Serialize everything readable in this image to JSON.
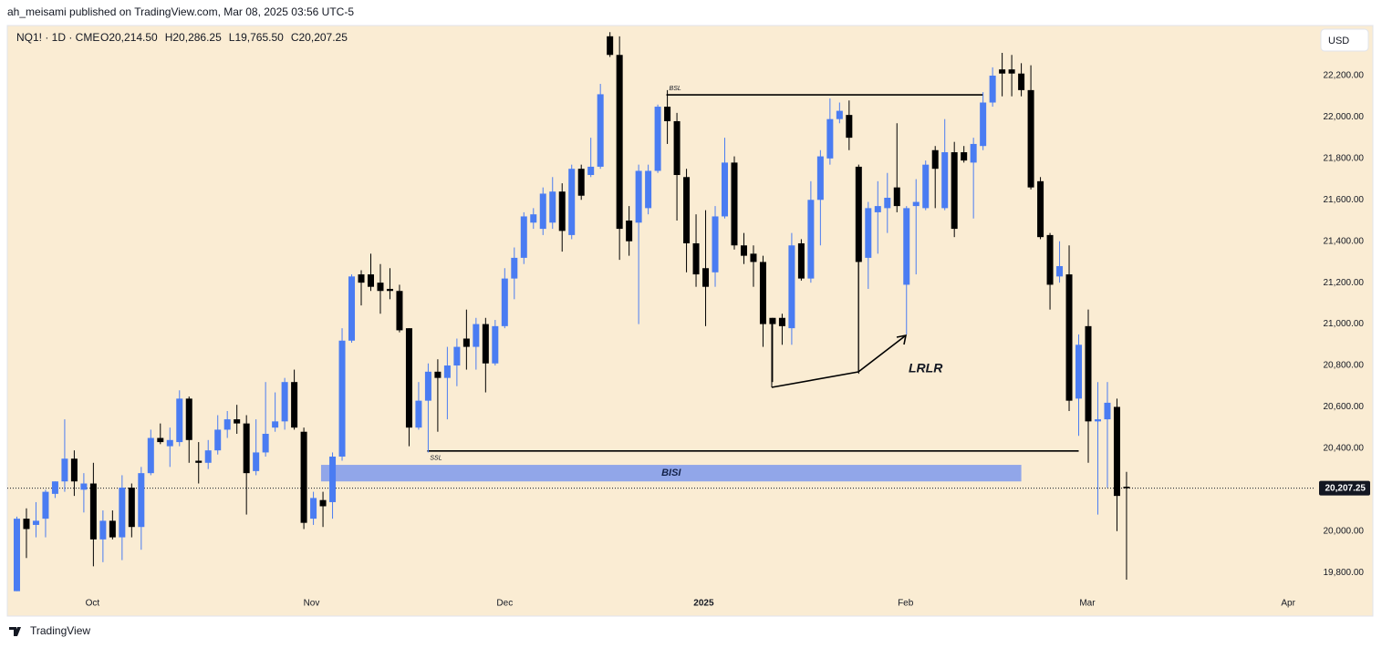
{
  "chart_data": {
    "type": "candlestick",
    "attribution": "ah_meisami published on TradingView.com, Mar 08, 2025 03:56 UTC-5",
    "symbol": "NQ1! · 1D · CME",
    "ohlc_labels": [
      "O20,214.50",
      "H20,286.25",
      "L19,765.50",
      "C20,207.25"
    ],
    "currency": "USD",
    "brand": "TradingView",
    "up_color": "#4a7cf2",
    "down_color": "#000000",
    "grid": false,
    "open": [
      19710,
      20060,
      20030,
      20060,
      20180,
      20240,
      20350,
      20200,
      20230,
      19960,
      20050,
      19970,
      20210,
      20020,
      20280,
      20450,
      20410,
      20430,
      20640,
      20340,
      20330,
      20390,
      20490,
      20540,
      20520,
      20290,
      20380,
      20500,
      20530,
      20720,
      20480,
      20060,
      20150,
      20140,
      20360,
      20920,
      21240,
      21240,
      21200,
      21170,
      21160,
      20980,
      20500,
      20630,
      20770,
      20740,
      20800,
      20930,
      20890,
      21000,
      20810,
      20990,
      21220,
      21320,
      21490,
      21460,
      21490,
      21640,
      21430,
      21750,
      21720,
      21760,
      22390,
      22300,
      21500,
      21490,
      21560,
      21740,
      22050,
      21980,
      21710,
      21390,
      21270,
      21250,
      21520,
      21780,
      21380,
      21340,
      21300,
      21030,
      21030,
      20980,
      21390,
      21220,
      21600,
      21800,
      21990,
      22010,
      21760,
      21320,
      21540,
      21560,
      21660,
      21190,
      21570,
      21560,
      21840,
      21560,
      21830,
      21830,
      21780,
      21860,
      22070,
      22230,
      22230,
      22210,
      22130,
      21690,
      21430,
      21230,
      21240,
      20640,
      20990,
      20530,
      20540,
      20600,
      20214.5
    ],
    "high": [
      20070,
      20110,
      20140,
      20200,
      20240,
      20540,
      20390,
      20280,
      20330,
      20100,
      20100,
      20270,
      20230,
      20310,
      20490,
      20520,
      20500,
      20680,
      20650,
      20430,
      20440,
      20560,
      20580,
      20610,
      20560,
      20540,
      20720,
      20670,
      20740,
      20780,
      20500,
      20190,
      20190,
      20380,
      20980,
      21240,
      21260,
      21340,
      21290,
      21270,
      21190,
      20980,
      20720,
      20810,
      20830,
      20890,
      20930,
      21070,
      21030,
      21030,
      21020,
      21270,
      21370,
      21540,
      21560,
      21660,
      21710,
      21680,
      21770,
      21770,
      21900,
      22160,
      22410,
      22390,
      21570,
      21770,
      21770,
      22060,
      22130,
      22020,
      21750,
      21530,
      21550,
      21570,
      21900,
      21810,
      21440,
      21380,
      21330,
      21030,
      21050,
      21440,
      21410,
      21690,
      21840,
      22090,
      22070,
      22080,
      21770,
      21590,
      21690,
      21730,
      21970,
      21570,
      21700,
      21790,
      21860,
      21990,
      21880,
      21860,
      21900,
      22120,
      22240,
      22310,
      22300,
      22260,
      22250,
      21710,
      21440,
      21400,
      21380,
      20950,
      21070,
      20720,
      20720,
      20640,
      20286.25
    ],
    "low": [
      19710,
      19870,
      19970,
      19970,
      20160,
      20190,
      20170,
      20090,
      19830,
      19850,
      19960,
      19860,
      19970,
      19910,
      20270,
      20420,
      20310,
      20410,
      20330,
      20230,
      20300,
      20370,
      20450,
      20470,
      20080,
      20270,
      20360,
      20480,
      20490,
      20490,
      20010,
      20030,
      20020,
      20060,
      20340,
      20910,
      21090,
      21160,
      21050,
      21120,
      20960,
      20410,
      20490,
      20380,
      20480,
      20540,
      20700,
      20780,
      20780,
      20670,
      20800,
      20980,
      21120,
      21290,
      21460,
      21430,
      21460,
      21350,
      21410,
      21600,
      21710,
      21750,
      22290,
      21310,
      21330,
      21000,
      21530,
      21730,
      21870,
      21500,
      21250,
      21180,
      20990,
      21180,
      21510,
      21360,
      21290,
      21180,
      20890,
      20720,
      20900,
      20900,
      21210,
      21200,
      21380,
      21770,
      21970,
      21840,
      20760,
      21170,
      21340,
      21440,
      21540,
      20950,
      21240,
      21550,
      21560,
      21550,
      21420,
      21780,
      21510,
      21840,
      22050,
      22100,
      22100,
      22100,
      21650,
      21410,
      21070,
      21200,
      20580,
      20460,
      20330,
      20080,
      20210,
      20000,
      19765.5
    ],
    "close": [
      20060,
      20010,
      20050,
      20190,
      20240,
      20350,
      20240,
      20230,
      19960,
      20050,
      19970,
      20210,
      20020,
      20280,
      20450,
      20430,
      20440,
      20640,
      20440,
      20330,
      20390,
      20490,
      20540,
      20520,
      20280,
      20380,
      20470,
      20530,
      20720,
      20500,
      20040,
      20160,
      20120,
      20360,
      20920,
      21230,
      21200,
      21180,
      21160,
      21160,
      20970,
      20500,
      20630,
      20770,
      20740,
      20800,
      20890,
      20890,
      21000,
      20810,
      20990,
      21220,
      21320,
      21520,
      21530,
      21630,
      21640,
      21450,
      21750,
      21620,
      21760,
      22110,
      22300,
      21460,
      21400,
      21740,
      21740,
      22050,
      21980,
      21720,
      21390,
      21240,
      21180,
      21520,
      21780,
      21380,
      21330,
      21300,
      21000,
      21000,
      20990,
      21380,
      21220,
      21600,
      21810,
      21990,
      22030,
      21900,
      21300,
      21560,
      21570,
      21610,
      21570,
      21560,
      21590,
      21770,
      21750,
      21830,
      21460,
      21790,
      21870,
      22070,
      22200,
      22210,
      22210,
      22130,
      21660,
      21420,
      21190,
      21280,
      20630,
      20900,
      20530,
      20540,
      20620,
      20170,
      20207.25
    ],
    "xlim": [
      -1,
      134.6
    ],
    "xticks": [
      {
        "value": 7.91,
        "label": "Oct"
      },
      {
        "value": 30.8,
        "label": "Nov"
      },
      {
        "value": 51.0,
        "label": "Dec"
      },
      {
        "value": 71.8,
        "label": "2025"
      },
      {
        "value": 92.9,
        "label": "Feb"
      },
      {
        "value": 111.9,
        "label": "Mar"
      },
      {
        "value": 132.9,
        "label": "Apr"
      }
    ],
    "ylim": [
      19704,
      22442
    ],
    "yticks": [
      {
        "value": 19800,
        "label": "19,800.00"
      },
      {
        "value": 20000,
        "label": "20,000.00"
      },
      {
        "value": 20200,
        "label": "20,200.00"
      },
      {
        "value": 20400,
        "label": "20,400.00"
      },
      {
        "value": 20600,
        "label": "20,600.00"
      },
      {
        "value": 20800,
        "label": "20,800.00"
      },
      {
        "value": 21000,
        "label": "21,000.00"
      },
      {
        "value": 21200,
        "label": "21,200.00"
      },
      {
        "value": 21400,
        "label": "21,400.00"
      },
      {
        "value": 21600,
        "label": "21,600.00"
      },
      {
        "value": 21800,
        "label": "21,800.00"
      },
      {
        "value": 22000,
        "label": "22,000.00"
      },
      {
        "value": 22200,
        "label": "22,200.00"
      }
    ],
    "last_price": {
      "value": 20207.25,
      "label": "20,207.25"
    },
    "levels": [
      {
        "text": "BSL",
        "value": 22107,
        "x": [
          67.9,
          101
        ]
      },
      {
        "text": "SSL",
        "value": 20387,
        "x": [
          42.9,
          111
        ]
      }
    ],
    "zone": {
      "text": "BISI",
      "range": [
        20240,
        20320
      ],
      "x": [
        31.8,
        105
      ]
    },
    "pattern_label": "LRLR"
  }
}
